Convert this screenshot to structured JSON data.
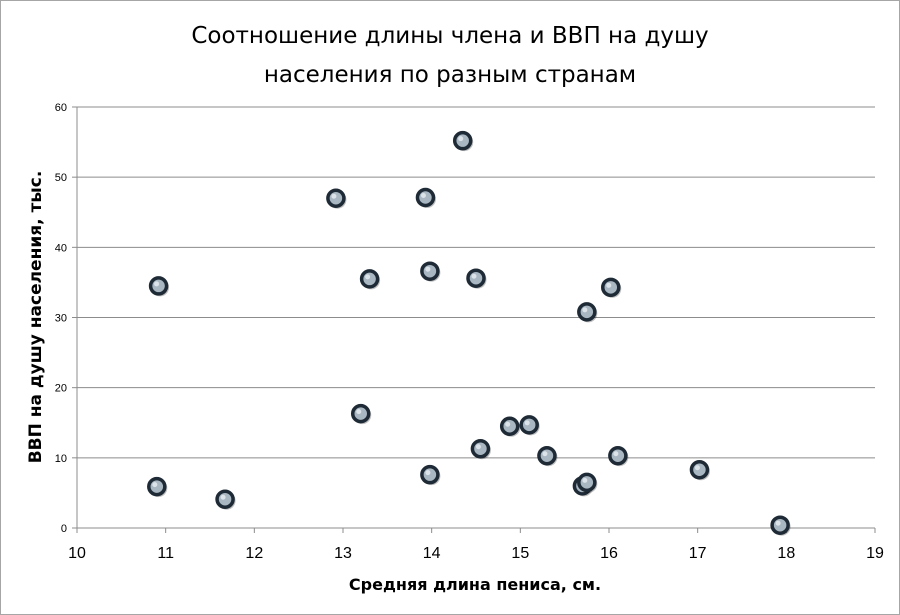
{
  "chart_data": {
    "type": "scatter",
    "title_lines": [
      "Соотношение длины члена и ВВП на душу",
      "населения по разным странам"
    ],
    "xlabel": "Средняя длина пениса, см.",
    "ylabel": "ВВП на душу населения, тыс.",
    "xlim": [
      10,
      19
    ],
    "ylim": [
      0,
      60
    ],
    "xticks": [
      10,
      11,
      12,
      13,
      14,
      15,
      16,
      17,
      18,
      19
    ],
    "yticks": [
      0,
      10,
      20,
      30,
      40,
      50,
      60
    ],
    "grid": "horizontal",
    "legend": "none",
    "marker_color": "#1e2a35",
    "marker_fill": "#a9b7c3",
    "points": [
      {
        "x": 10.92,
        "y": 34.5
      },
      {
        "x": 10.9,
        "y": 5.9
      },
      {
        "x": 11.67,
        "y": 4.1
      },
      {
        "x": 12.92,
        "y": 47.0
      },
      {
        "x": 13.2,
        "y": 16.3
      },
      {
        "x": 13.3,
        "y": 35.5
      },
      {
        "x": 13.93,
        "y": 47.1
      },
      {
        "x": 13.98,
        "y": 36.6
      },
      {
        "x": 13.98,
        "y": 7.6
      },
      {
        "x": 14.35,
        "y": 55.2
      },
      {
        "x": 14.5,
        "y": 35.6
      },
      {
        "x": 14.55,
        "y": 11.3
      },
      {
        "x": 14.88,
        "y": 14.5
      },
      {
        "x": 15.1,
        "y": 14.7
      },
      {
        "x": 15.3,
        "y": 10.3
      },
      {
        "x": 15.7,
        "y": 6.0
      },
      {
        "x": 15.75,
        "y": 6.5
      },
      {
        "x": 15.75,
        "y": 30.8
      },
      {
        "x": 16.02,
        "y": 34.3
      },
      {
        "x": 16.1,
        "y": 10.3
      },
      {
        "x": 17.02,
        "y": 8.3
      },
      {
        "x": 17.93,
        "y": 0.4
      }
    ]
  }
}
